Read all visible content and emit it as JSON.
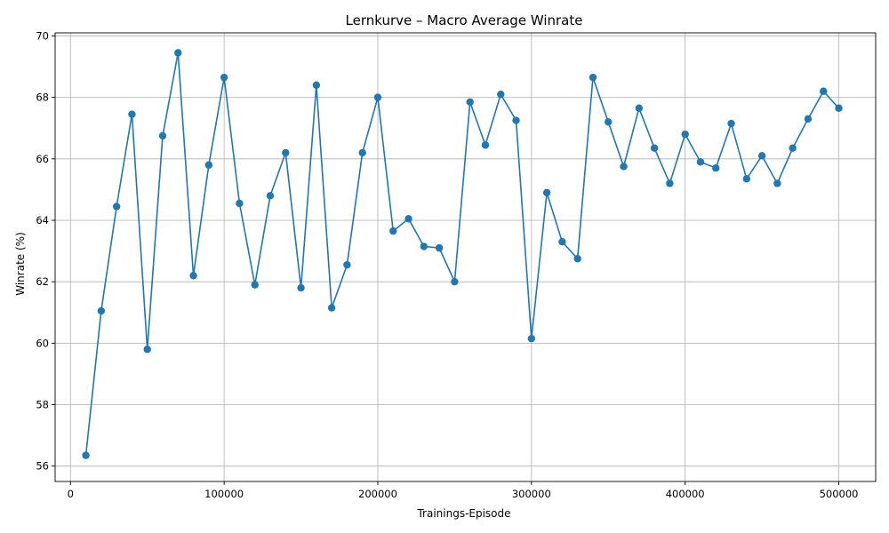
{
  "chart_data": {
    "type": "line",
    "title": "Lernkurve – Macro Average Winrate",
    "xlabel": "Trainings-Episode",
    "ylabel": "Winrate (%)",
    "xlim": [
      -10000,
      524000
    ],
    "ylim": [
      55.5,
      70.1
    ],
    "xticks": [
      0,
      100000,
      200000,
      300000,
      400000,
      500000
    ],
    "yticks": [
      56,
      58,
      60,
      62,
      64,
      66,
      68,
      70
    ],
    "grid": true,
    "colors": {
      "series": "#1f77b4"
    },
    "series": [
      {
        "marker": "circle",
        "x": [
          10000,
          20000,
          30000,
          40000,
          50000,
          60000,
          70000,
          80000,
          90000,
          100000,
          110000,
          120000,
          130000,
          140000,
          150000,
          160000,
          170000,
          180000,
          190000,
          200000,
          210000,
          220000,
          230000,
          240000,
          250000,
          260000,
          270000,
          280000,
          290000,
          300000,
          310000,
          320000,
          330000,
          340000,
          350000,
          360000,
          370000,
          380000,
          390000,
          400000,
          410000,
          420000,
          430000,
          440000,
          450000,
          460000,
          470000,
          480000,
          490000,
          500000
        ],
        "y": [
          56.35,
          61.05,
          64.45,
          67.45,
          59.8,
          66.75,
          69.45,
          62.2,
          65.8,
          68.65,
          64.55,
          61.9,
          64.8,
          66.2,
          61.8,
          68.4,
          61.15,
          62.55,
          66.2,
          68.0,
          63.65,
          64.05,
          63.15,
          63.1,
          62.0,
          67.85,
          66.45,
          68.1,
          67.25,
          60.15,
          64.9,
          63.3,
          62.75,
          68.65,
          67.2,
          65.75,
          67.65,
          66.35,
          65.2,
          66.8,
          65.9,
          65.7,
          67.15,
          65.35,
          66.1,
          65.2,
          66.35,
          67.3,
          68.2,
          67.65
        ]
      }
    ]
  }
}
